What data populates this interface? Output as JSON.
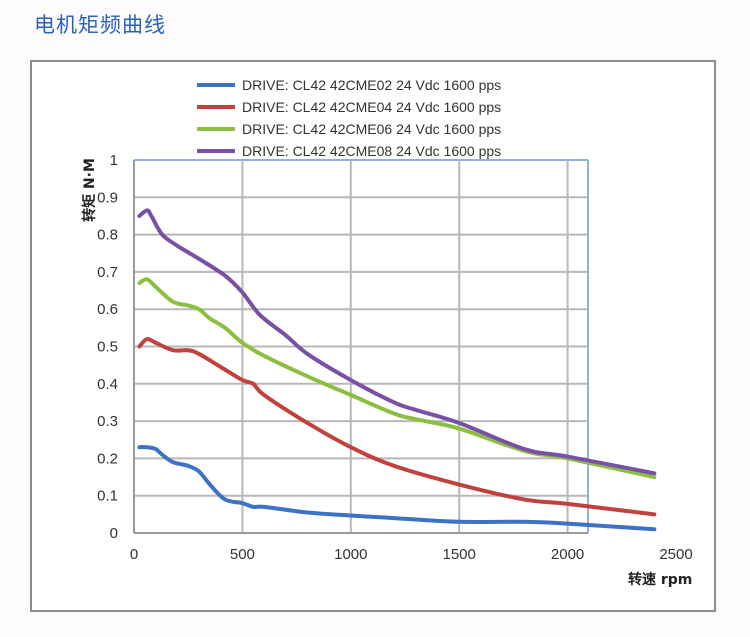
{
  "page": {
    "title": "电机矩频曲线"
  },
  "chart_data": {
    "type": "line",
    "title": "",
    "xlabel": "转速 rpm",
    "ylabel": "转矩 N·M",
    "xlim": [
      0,
      2500
    ],
    "ylim": [
      0,
      1
    ],
    "xticks": [
      0,
      500,
      1000,
      1500,
      2000,
      2500
    ],
    "yticks": [
      0,
      0.1,
      0.2,
      0.3,
      0.4,
      0.5,
      0.6,
      0.7,
      0.8,
      0.9,
      1
    ],
    "ytick_labels": [
      "0",
      "0.1",
      "0.2",
      "0.3",
      "0.4",
      "0.5",
      "0.6",
      "0.7",
      "0.8",
      "0.9",
      "1"
    ],
    "xtick_labels": [
      "0",
      "500",
      "1000",
      "1500",
      "2000",
      "2500"
    ],
    "grid": true,
    "legend_position": "top",
    "series": [
      {
        "name": "DRIVE: CL42 42CME02 24 Vdc  1600 pps",
        "color": "#3d72c4",
        "x": [
          25,
          60,
          100,
          130,
          180,
          250,
          300,
          350,
          420,
          500,
          550,
          600,
          800,
          1000,
          1200,
          1500,
          1800,
          2000,
          2400
        ],
        "y": [
          0.23,
          0.23,
          0.225,
          0.21,
          0.19,
          0.18,
          0.165,
          0.13,
          0.09,
          0.08,
          0.07,
          0.07,
          0.055,
          0.047,
          0.04,
          0.03,
          0.03,
          0.025,
          0.01
        ]
      },
      {
        "name": "DRIVE: CL42 42CME04 24 Vdc  1600 pps",
        "color": "#c0413d",
        "x": [
          25,
          60,
          100,
          180,
          250,
          300,
          400,
          500,
          550,
          600,
          800,
          1000,
          1200,
          1500,
          1800,
          2000,
          2400
        ],
        "y": [
          0.5,
          0.52,
          0.51,
          0.49,
          0.49,
          0.48,
          0.445,
          0.41,
          0.4,
          0.37,
          0.295,
          0.23,
          0.18,
          0.13,
          0.09,
          0.078,
          0.05
        ]
      },
      {
        "name": "DRIVE: CL42 42CME06 24 Vdc  1600 pps",
        "color": "#8cbf3f",
        "x": [
          25,
          60,
          100,
          180,
          250,
          300,
          350,
          420,
          500,
          600,
          800,
          1000,
          1200,
          1300,
          1500,
          1800,
          2000,
          2400
        ],
        "y": [
          0.67,
          0.68,
          0.66,
          0.62,
          0.61,
          0.6,
          0.575,
          0.55,
          0.51,
          0.475,
          0.42,
          0.37,
          0.32,
          0.305,
          0.28,
          0.22,
          0.2,
          0.15
        ]
      },
      {
        "name": "DRIVE: CL42 42CME08 24 Vdc  1600 pps",
        "color": "#7a4fa6",
        "x": [
          25,
          60,
          80,
          130,
          200,
          300,
          420,
          500,
          580,
          700,
          800,
          1000,
          1200,
          1300,
          1500,
          1800,
          2000,
          2400
        ],
        "y": [
          0.85,
          0.865,
          0.85,
          0.8,
          0.77,
          0.735,
          0.69,
          0.645,
          0.585,
          0.53,
          0.48,
          0.41,
          0.35,
          0.33,
          0.295,
          0.225,
          0.205,
          0.16
        ]
      }
    ]
  }
}
